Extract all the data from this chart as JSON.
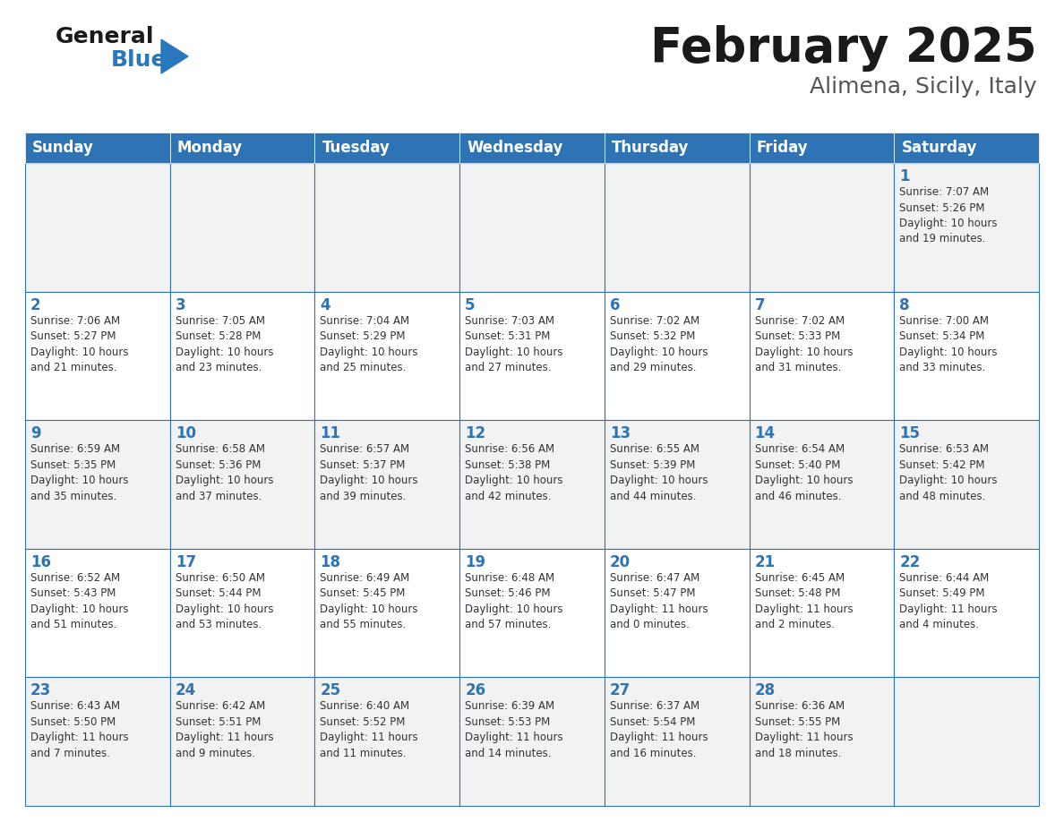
{
  "title": "February 2025",
  "subtitle": "Alimena, Sicily, Italy",
  "header_bg": "#2E74B5",
  "header_text": "#FFFFFF",
  "cell_bg_white": "#FFFFFF",
  "cell_bg_gray": "#F2F2F2",
  "border_color": "#2E74B5",
  "day_headers": [
    "Sunday",
    "Monday",
    "Tuesday",
    "Wednesday",
    "Thursday",
    "Friday",
    "Saturday"
  ],
  "title_color": "#1a1a1a",
  "subtitle_color": "#555555",
  "day_num_color": "#2E74B5",
  "info_color": "#333333",
  "logo_general_color": "#1a1a1a",
  "logo_blue_color": "#2977BC",
  "weeks": [
    [
      {
        "day": null,
        "info": ""
      },
      {
        "day": null,
        "info": ""
      },
      {
        "day": null,
        "info": ""
      },
      {
        "day": null,
        "info": ""
      },
      {
        "day": null,
        "info": ""
      },
      {
        "day": null,
        "info": ""
      },
      {
        "day": 1,
        "info": "Sunrise: 7:07 AM\nSunset: 5:26 PM\nDaylight: 10 hours\nand 19 minutes."
      }
    ],
    [
      {
        "day": 2,
        "info": "Sunrise: 7:06 AM\nSunset: 5:27 PM\nDaylight: 10 hours\nand 21 minutes."
      },
      {
        "day": 3,
        "info": "Sunrise: 7:05 AM\nSunset: 5:28 PM\nDaylight: 10 hours\nand 23 minutes."
      },
      {
        "day": 4,
        "info": "Sunrise: 7:04 AM\nSunset: 5:29 PM\nDaylight: 10 hours\nand 25 minutes."
      },
      {
        "day": 5,
        "info": "Sunrise: 7:03 AM\nSunset: 5:31 PM\nDaylight: 10 hours\nand 27 minutes."
      },
      {
        "day": 6,
        "info": "Sunrise: 7:02 AM\nSunset: 5:32 PM\nDaylight: 10 hours\nand 29 minutes."
      },
      {
        "day": 7,
        "info": "Sunrise: 7:02 AM\nSunset: 5:33 PM\nDaylight: 10 hours\nand 31 minutes."
      },
      {
        "day": 8,
        "info": "Sunrise: 7:00 AM\nSunset: 5:34 PM\nDaylight: 10 hours\nand 33 minutes."
      }
    ],
    [
      {
        "day": 9,
        "info": "Sunrise: 6:59 AM\nSunset: 5:35 PM\nDaylight: 10 hours\nand 35 minutes."
      },
      {
        "day": 10,
        "info": "Sunrise: 6:58 AM\nSunset: 5:36 PM\nDaylight: 10 hours\nand 37 minutes."
      },
      {
        "day": 11,
        "info": "Sunrise: 6:57 AM\nSunset: 5:37 PM\nDaylight: 10 hours\nand 39 minutes."
      },
      {
        "day": 12,
        "info": "Sunrise: 6:56 AM\nSunset: 5:38 PM\nDaylight: 10 hours\nand 42 minutes."
      },
      {
        "day": 13,
        "info": "Sunrise: 6:55 AM\nSunset: 5:39 PM\nDaylight: 10 hours\nand 44 minutes."
      },
      {
        "day": 14,
        "info": "Sunrise: 6:54 AM\nSunset: 5:40 PM\nDaylight: 10 hours\nand 46 minutes."
      },
      {
        "day": 15,
        "info": "Sunrise: 6:53 AM\nSunset: 5:42 PM\nDaylight: 10 hours\nand 48 minutes."
      }
    ],
    [
      {
        "day": 16,
        "info": "Sunrise: 6:52 AM\nSunset: 5:43 PM\nDaylight: 10 hours\nand 51 minutes."
      },
      {
        "day": 17,
        "info": "Sunrise: 6:50 AM\nSunset: 5:44 PM\nDaylight: 10 hours\nand 53 minutes."
      },
      {
        "day": 18,
        "info": "Sunrise: 6:49 AM\nSunset: 5:45 PM\nDaylight: 10 hours\nand 55 minutes."
      },
      {
        "day": 19,
        "info": "Sunrise: 6:48 AM\nSunset: 5:46 PM\nDaylight: 10 hours\nand 57 minutes."
      },
      {
        "day": 20,
        "info": "Sunrise: 6:47 AM\nSunset: 5:47 PM\nDaylight: 11 hours\nand 0 minutes."
      },
      {
        "day": 21,
        "info": "Sunrise: 6:45 AM\nSunset: 5:48 PM\nDaylight: 11 hours\nand 2 minutes."
      },
      {
        "day": 22,
        "info": "Sunrise: 6:44 AM\nSunset: 5:49 PM\nDaylight: 11 hours\nand 4 minutes."
      }
    ],
    [
      {
        "day": 23,
        "info": "Sunrise: 6:43 AM\nSunset: 5:50 PM\nDaylight: 11 hours\nand 7 minutes."
      },
      {
        "day": 24,
        "info": "Sunrise: 6:42 AM\nSunset: 5:51 PM\nDaylight: 11 hours\nand 9 minutes."
      },
      {
        "day": 25,
        "info": "Sunrise: 6:40 AM\nSunset: 5:52 PM\nDaylight: 11 hours\nand 11 minutes."
      },
      {
        "day": 26,
        "info": "Sunrise: 6:39 AM\nSunset: 5:53 PM\nDaylight: 11 hours\nand 14 minutes."
      },
      {
        "day": 27,
        "info": "Sunrise: 6:37 AM\nSunset: 5:54 PM\nDaylight: 11 hours\nand 16 minutes."
      },
      {
        "day": 28,
        "info": "Sunrise: 6:36 AM\nSunset: 5:55 PM\nDaylight: 11 hours\nand 18 minutes."
      },
      {
        "day": null,
        "info": ""
      }
    ]
  ],
  "row_bg_colors": [
    "#F2F2F2",
    "#FFFFFF",
    "#F2F2F2",
    "#FFFFFF",
    "#F2F2F2"
  ]
}
